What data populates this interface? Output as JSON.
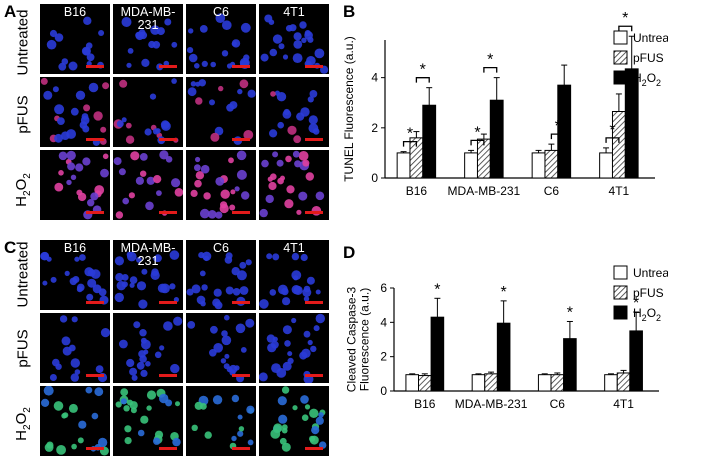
{
  "panels": {
    "A": {
      "letter": "A",
      "rows": [
        "Untreated",
        "pFUS",
        "H2O2"
      ],
      "cols": [
        "B16",
        "MDA-MB-231",
        "C6",
        "4T1"
      ]
    },
    "B": {
      "letter": "B"
    },
    "C": {
      "letter": "C",
      "rows": [
        "Untreated",
        "pFUS",
        "H2O2"
      ],
      "cols": [
        "B16",
        "MDA-MB-\n231",
        "C6",
        "4T1"
      ]
    },
    "D": {
      "letter": "D"
    }
  },
  "chart_data": [
    {
      "type": "bar",
      "ylabel": "TUNEL Fluorescence (a.u.)",
      "categories": [
        "B16",
        "MDA-MB-231",
        "C6",
        "4T1"
      ],
      "yticks": [
        0,
        2,
        4
      ],
      "ylim": [
        0,
        5.5
      ],
      "legend_position": "top-right",
      "series": [
        {
          "name": "Untreated",
          "values": [
            1.0,
            1.0,
            1.0,
            1.0
          ],
          "err": [
            0.05,
            0.1,
            0.1,
            0.2
          ]
        },
        {
          "name": "pFUS",
          "values": [
            1.6,
            1.55,
            1.1,
            2.65
          ],
          "err": [
            0.25,
            0.2,
            0.25,
            0.7
          ]
        },
        {
          "name": "H2O2",
          "values": [
            2.9,
            3.1,
            3.7,
            4.35
          ],
          "err": [
            0.7,
            0.9,
            0.8,
            1.3
          ]
        }
      ],
      "significance": [
        {
          "category": "B16",
          "pairs": [
            "Untreated-pFUS",
            "pFUS-H2O2"
          ],
          "label": "*"
        },
        {
          "category": "MDA-MB-231",
          "pairs": [
            "Untreated-pFUS",
            "pFUS-H2O2"
          ],
          "label": "*"
        },
        {
          "category": "C6",
          "pairs": [
            "pFUS-H2O2"
          ],
          "label": "*"
        },
        {
          "category": "4T1",
          "pairs": [
            "Untreated-pFUS",
            "pFUS-H2O2"
          ],
          "label": "*"
        }
      ]
    },
    {
      "type": "bar",
      "ylabel": "Cleaved Caspase-3 Fluorescence (a.u.)",
      "ylabel_lines": [
        "Cleaved Caspase-3",
        "Fluorescence (a.u.)"
      ],
      "categories": [
        "B16",
        "MDA-MB-231",
        "C6",
        "4T1"
      ],
      "yticks": [
        0,
        2,
        4,
        6
      ],
      "ylim": [
        0,
        6
      ],
      "legend_position": "top-right",
      "series": [
        {
          "name": "Untreated",
          "values": [
            0.95,
            0.95,
            0.95,
            0.95
          ],
          "err": [
            0.05,
            0.05,
            0.05,
            0.05
          ]
        },
        {
          "name": "pFUS",
          "values": [
            0.9,
            1.0,
            0.95,
            1.05
          ],
          "err": [
            0.1,
            0.1,
            0.1,
            0.15
          ]
        },
        {
          "name": "H2O2",
          "values": [
            4.3,
            3.95,
            3.05,
            3.5
          ],
          "err": [
            1.1,
            1.3,
            1.0,
            1.1
          ]
        }
      ],
      "significance": [
        {
          "category": "B16",
          "label": "*"
        },
        {
          "category": "MDA-MB-231",
          "label": "*"
        },
        {
          "category": "C6",
          "label": "*"
        },
        {
          "category": "4T1",
          "label": "*"
        }
      ]
    }
  ]
}
